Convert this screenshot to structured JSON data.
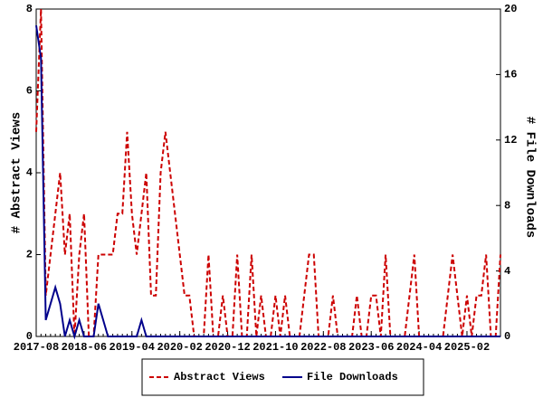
{
  "chart_data": {
    "type": "line",
    "ylabel": "# Abstract Views",
    "y2label": "# File Downloads",
    "categories": [
      "2017-08",
      "2017-09",
      "2017-10",
      "2017-11",
      "2017-12",
      "2018-01",
      "2018-02",
      "2018-03",
      "2018-04",
      "2018-05",
      "2018-06",
      "2018-07",
      "2018-08",
      "2018-09",
      "2018-10",
      "2018-11",
      "2018-12",
      "2019-01",
      "2019-02",
      "2019-03",
      "2019-04",
      "2019-05",
      "2019-06",
      "2019-07",
      "2019-08",
      "2019-09",
      "2019-10",
      "2019-11",
      "2019-12",
      "2020-01",
      "2020-02",
      "2020-03",
      "2020-04",
      "2020-05",
      "2020-06",
      "2020-07",
      "2020-08",
      "2020-09",
      "2020-10",
      "2020-11",
      "2020-12",
      "2021-01",
      "2021-02",
      "2021-03",
      "2021-04",
      "2021-05",
      "2021-06",
      "2021-07",
      "2021-08",
      "2021-09",
      "2021-10",
      "2021-11",
      "2021-12",
      "2022-01",
      "2022-02",
      "2022-03",
      "2022-04",
      "2022-05",
      "2022-06",
      "2022-07",
      "2022-08",
      "2022-09",
      "2022-10",
      "2022-11",
      "2022-12",
      "2023-01",
      "2023-02",
      "2023-03",
      "2023-04",
      "2023-05",
      "2023-06",
      "2023-07",
      "2023-08",
      "2023-09",
      "2023-10",
      "2023-11",
      "2023-12",
      "2024-01",
      "2024-02",
      "2024-03",
      "2024-04",
      "2024-05",
      "2024-06",
      "2024-07",
      "2024-08",
      "2024-09",
      "2024-10",
      "2024-11",
      "2024-12",
      "2025-01",
      "2025-02",
      "2025-03",
      "2025-04",
      "2025-05",
      "2025-06",
      "2025-07",
      "2025-08",
      "2025-09"
    ],
    "xticks": [
      "2017-08",
      "2018-06",
      "2019-04",
      "2020-02",
      "2020-12",
      "2021-10",
      "2022-08",
      "2023-06",
      "2024-04",
      "2025-02"
    ],
    "series": [
      {
        "name": "Abstract Views",
        "color": "#cc0000",
        "linestyle": "dashed",
        "values": [
          5,
          8,
          1,
          2,
          3,
          4,
          2,
          3,
          0,
          2,
          3,
          0,
          0,
          2,
          2,
          2,
          2,
          3,
          3,
          5,
          3,
          2,
          3,
          4,
          1,
          1,
          4,
          5,
          4,
          3,
          2,
          1,
          1,
          0,
          0,
          0,
          2,
          0,
          0,
          1,
          0,
          0,
          2,
          0,
          0,
          2,
          0,
          1,
          0,
          0,
          1,
          0,
          1,
          0,
          0,
          0,
          1,
          2,
          2,
          0,
          0,
          0,
          1,
          0,
          0,
          0,
          0,
          1,
          0,
          0,
          1,
          1,
          0,
          2,
          0,
          0,
          0,
          0,
          1,
          2,
          0,
          0,
          0,
          0,
          0,
          0,
          1,
          2,
          1,
          0,
          1,
          0,
          1,
          1,
          2,
          0,
          0,
          2
        ]
      },
      {
        "name": "File Downloads",
        "color": "#00008b",
        "linestyle": "solid",
        "axis": "y2",
        "values": [
          19,
          17,
          1,
          2,
          3,
          2,
          0,
          1,
          0,
          1,
          0,
          0,
          0,
          2,
          1,
          0,
          0,
          0,
          0,
          0,
          0,
          0,
          1,
          0,
          0,
          0,
          0,
          0,
          0,
          0,
          0,
          0,
          0,
          0,
          0,
          0,
          0,
          0,
          0,
          0,
          0,
          0,
          0,
          0,
          0,
          0,
          0,
          0,
          0,
          0,
          0,
          0,
          0,
          0,
          0,
          0,
          0,
          0,
          0,
          0,
          0,
          0,
          0,
          0,
          0,
          0,
          0,
          0,
          0,
          0,
          0,
          0,
          0,
          0,
          0,
          0,
          0,
          0,
          0,
          0,
          0,
          0,
          0,
          0,
          0,
          0,
          0,
          0,
          0,
          0,
          0,
          0,
          0,
          0,
          0,
          0,
          0,
          0
        ]
      }
    ],
    "ylim": [
      0,
      8
    ],
    "yticks": [
      0,
      2,
      4,
      6,
      8
    ],
    "y2lim": [
      0,
      20
    ],
    "y2ticks": [
      0,
      4,
      8,
      12,
      16,
      20
    ],
    "legend": "bottom"
  }
}
